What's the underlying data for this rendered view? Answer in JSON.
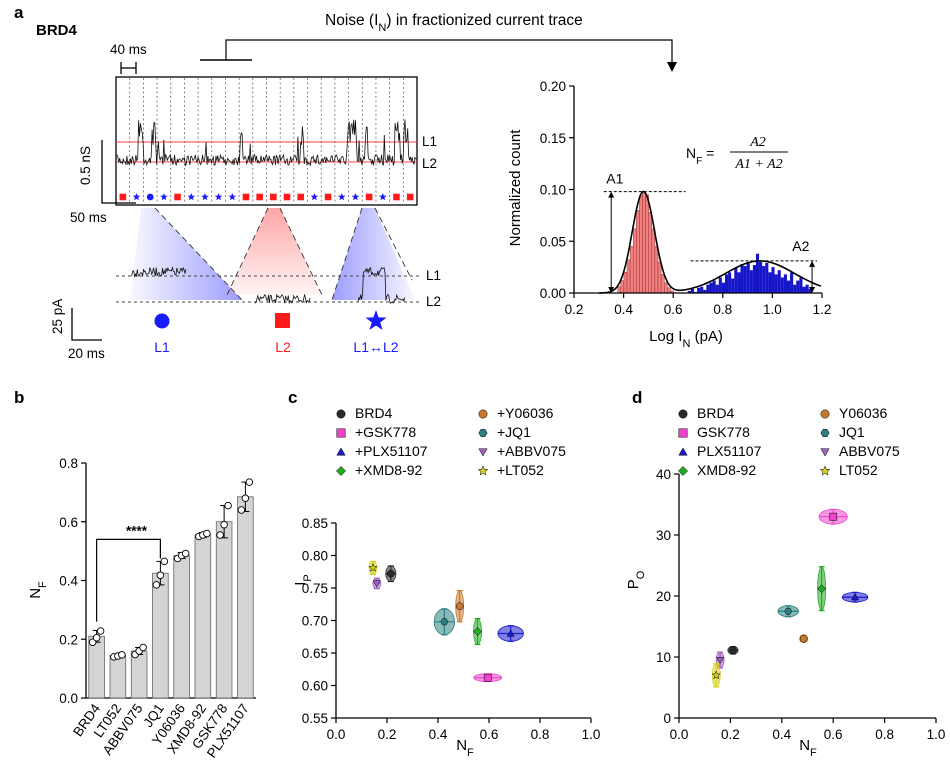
{
  "panel_labels": {
    "a": "a",
    "b": "b",
    "c": "c",
    "d": "d"
  },
  "panel_a": {
    "protein": "BRD4",
    "noise_title_pre": "Noise (I",
    "noise_title_sub": "N",
    "noise_title_post": ") in fractionized current trace",
    "scale_time_top": "40 ms",
    "scale_trace_v": "0.5 nS",
    "scale_trace_h": "50 ms",
    "scale_zoom_v": "25 pA",
    "scale_zoom_h": "20 ms",
    "level_L1": "L1",
    "level_L2": "L2",
    "state_labels": {
      "l1": "L1",
      "l2": "L2",
      "l1l2": "L1↔L2"
    },
    "segment_states": [
      "sq",
      "star",
      "circle",
      "star",
      "sq",
      "star",
      "star",
      "star",
      "star",
      "sq",
      "sq",
      "sq",
      "sq",
      "sq",
      "star",
      "sq",
      "star",
      "star",
      "sq",
      "star",
      "sq",
      "sq"
    ],
    "colors": {
      "blue": "#1a1aff",
      "red": "#ff1a1a",
      "blue_fill": "#1414c8",
      "red_fill": "#f07f7f"
    }
  },
  "hist": {
    "xlabel_pre": "Log I",
    "xlabel_sub": "N",
    "xlabel_post": " (pA)",
    "ylabel": "Normalized count",
    "formula_lhs_pre": "N",
    "formula_lhs_sub": "F",
    "formula_lhs_post": " =",
    "formula_num": "A2",
    "formula_den": "A1 + A2",
    "label_A1": "A1",
    "label_A2": "A2",
    "xticks": [
      "0.2",
      "0.4",
      "0.6",
      "0.8",
      "1.0",
      "1.2"
    ],
    "yticks": [
      "0.00",
      "0.05",
      "0.10",
      "0.15",
      "0.20"
    ]
  },
  "chart_data": [
    {
      "type": "bar",
      "panel": "a-histogram",
      "xlim": [
        0.2,
        1.2
      ],
      "ylim": [
        0,
        0.2
      ],
      "bin_width": 0.0125,
      "series": [
        {
          "color": "#f07f7f",
          "x": [
            0.3825,
            0.395,
            0.4075,
            0.42,
            0.4325,
            0.445,
            0.4575,
            0.47,
            0.4825,
            0.495,
            0.5075,
            0.52,
            0.5325,
            0.545,
            0.5575,
            0.57,
            0.5825,
            0.595
          ],
          "values": [
            0.006,
            0.012,
            0.02,
            0.032,
            0.045,
            0.062,
            0.08,
            0.094,
            0.098,
            0.095,
            0.078,
            0.062,
            0.045,
            0.03,
            0.018,
            0.01,
            0.005,
            0.002
          ]
        },
        {
          "color": "#1414c8",
          "x": [
            0.665,
            0.6775,
            0.69,
            0.7025,
            0.715,
            0.7275,
            0.74,
            0.7525,
            0.765,
            0.7775,
            0.79,
            0.8025,
            0.815,
            0.8275,
            0.84,
            0.8525,
            0.865,
            0.8775,
            0.89,
            0.9025,
            0.915,
            0.9275,
            0.94,
            0.9525,
            0.965,
            0.9775,
            0.99,
            1.0025,
            1.015,
            1.0275,
            1.04,
            1.0525,
            1.065,
            1.0775,
            1.09,
            1.1025,
            1.115,
            1.1275,
            1.14,
            1.1525
          ],
          "values": [
            0.002,
            0.004,
            0.001,
            0.005,
            0.006,
            0.003,
            0.008,
            0.01,
            0.012,
            0.008,
            0.015,
            0.01,
            0.018,
            0.02,
            0.014,
            0.024,
            0.02,
            0.028,
            0.026,
            0.03,
            0.022,
            0.027,
            0.038,
            0.03,
            0.026,
            0.029,
            0.02,
            0.025,
            0.018,
            0.022,
            0.015,
            0.018,
            0.012,
            0.02,
            0.008,
            0.012,
            0.015,
            0.006,
            0.008,
            0.004
          ]
        }
      ],
      "fit": [
        {
          "mu": 0.48,
          "sigma": 0.045,
          "amp": 0.098
        },
        {
          "mu": 0.95,
          "sigma": 0.14,
          "amp": 0.031
        }
      ]
    },
    {
      "type": "bar",
      "panel": "b",
      "categories": [
        "BRD4",
        "LT052",
        "ABBV075",
        "JQ1",
        "Y06036",
        "XMD8-92",
        "GSK778",
        "PLX51107"
      ],
      "values": [
        0.21,
        0.145,
        0.16,
        0.425,
        0.485,
        0.555,
        0.6,
        0.685
      ],
      "error": [
        0.02,
        0.005,
        0.012,
        0.04,
        0.01,
        0.008,
        0.055,
        0.05
      ],
      "points": [
        [
          0.19,
          0.205,
          0.228
        ],
        [
          0.14,
          0.143,
          0.147
        ],
        [
          0.148,
          0.16,
          0.172
        ],
        [
          0.385,
          0.418,
          0.465
        ],
        [
          0.475,
          0.485,
          0.492
        ],
        [
          0.55,
          0.555,
          0.56
        ],
        [
          0.555,
          0.59,
          0.655
        ],
        [
          0.64,
          0.68,
          0.735
        ]
      ],
      "ylim": [
        0,
        0.8
      ],
      "yticks": [
        "0.0",
        "0.2",
        "0.4",
        "0.6",
        "0.8"
      ],
      "ylabel_pre": "N",
      "ylabel_sub": "F",
      "significance": "****"
    },
    {
      "type": "scatter",
      "panel": "c",
      "xlim": [
        0,
        1.0
      ],
      "ylim": [
        0.55,
        0.85
      ],
      "xticks": [
        "0.0",
        "0.2",
        "0.4",
        "0.6",
        "0.8",
        "1.0"
      ],
      "yticks": [
        "0.55",
        "0.60",
        "0.65",
        "0.70",
        "0.75",
        "0.80",
        "0.85"
      ],
      "xlabel_pre": "N",
      "xlabel_sub": "F",
      "ylabel_pre": "I",
      "ylabel_sub": "P",
      "series": [
        {
          "name": "BRD4",
          "marker": "circle",
          "color": "#2b2b2b",
          "x": 0.215,
          "y": 0.772,
          "xerr": 0.02,
          "yerr": 0.012
        },
        {
          "name": "+GSK778",
          "marker": "square",
          "color": "#ee44cc",
          "x": 0.595,
          "y": 0.612,
          "xerr": 0.055,
          "yerr": 0.005
        },
        {
          "name": "+PLX51107",
          "marker": "triangle",
          "color": "#1a1ad0",
          "x": 0.685,
          "y": 0.68,
          "xerr": 0.05,
          "yerr": 0.012
        },
        {
          "name": "+XMD8-92",
          "marker": "diamond",
          "color": "#22aa22",
          "x": 0.555,
          "y": 0.683,
          "xerr": 0.008,
          "yerr": 0.02
        },
        {
          "name": "+Y06036",
          "marker": "circle",
          "color": "#c87830",
          "x": 0.485,
          "y": 0.722,
          "xerr": 0.01,
          "yerr": 0.024
        },
        {
          "name": "+JQ1",
          "marker": "hexagon",
          "color": "#2a8080",
          "x": 0.425,
          "y": 0.698,
          "xerr": 0.04,
          "yerr": 0.02
        },
        {
          "name": "+ABBV075",
          "marker": "triangle-down",
          "color": "#a060c0",
          "x": 0.16,
          "y": 0.757,
          "xerr": 0.012,
          "yerr": 0.008
        },
        {
          "name": "+LT052",
          "marker": "star",
          "color": "#d8d020",
          "x": 0.145,
          "y": 0.781,
          "xerr": 0.005,
          "yerr": 0.01
        }
      ]
    },
    {
      "type": "scatter",
      "panel": "d",
      "xlim": [
        0,
        1.0
      ],
      "ylim": [
        0,
        40
      ],
      "xticks": [
        "0.0",
        "0.2",
        "0.4",
        "0.6",
        "0.8",
        "1.0"
      ],
      "yticks": [
        "0",
        "10",
        "20",
        "30",
        "40"
      ],
      "xlabel_pre": "N",
      "xlabel_sub": "F",
      "ylabel_pre": "P",
      "ylabel_sub": "O",
      "series": [
        {
          "name": "BRD4",
          "marker": "circle",
          "color": "#2b2b2b",
          "x": 0.21,
          "y": 11.1,
          "xerr": 0.02,
          "yerr": 0.6
        },
        {
          "name": "GSK778",
          "marker": "square",
          "color": "#ee44cc",
          "x": 0.6,
          "y": 33.0,
          "xerr": 0.055,
          "yerr": 1.2
        },
        {
          "name": "PLX51107",
          "marker": "triangle",
          "color": "#1a1ad0",
          "x": 0.685,
          "y": 19.8,
          "xerr": 0.05,
          "yerr": 0.8
        },
        {
          "name": "XMD8-92",
          "marker": "diamond",
          "color": "#22aa22",
          "x": 0.555,
          "y": 21.2,
          "xerr": 0.008,
          "yerr": 3.6
        },
        {
          "name": "Y06036",
          "marker": "circle",
          "color": "#c87830",
          "x": 0.485,
          "y": 13.0,
          "xerr": 0.01,
          "yerr": 0.4
        },
        {
          "name": "JQ1",
          "marker": "hexagon",
          "color": "#2a8080",
          "x": 0.425,
          "y": 17.5,
          "xerr": 0.04,
          "yerr": 0.9
        },
        {
          "name": "ABBV075",
          "marker": "triangle-down",
          "color": "#a060c0",
          "x": 0.16,
          "y": 9.5,
          "xerr": 0.012,
          "yerr": 1.3
        },
        {
          "name": "LT052",
          "marker": "star",
          "color": "#d8d020",
          "x": 0.145,
          "y": 7.0,
          "xerr": 0.005,
          "yerr": 1.9
        }
      ]
    }
  ]
}
